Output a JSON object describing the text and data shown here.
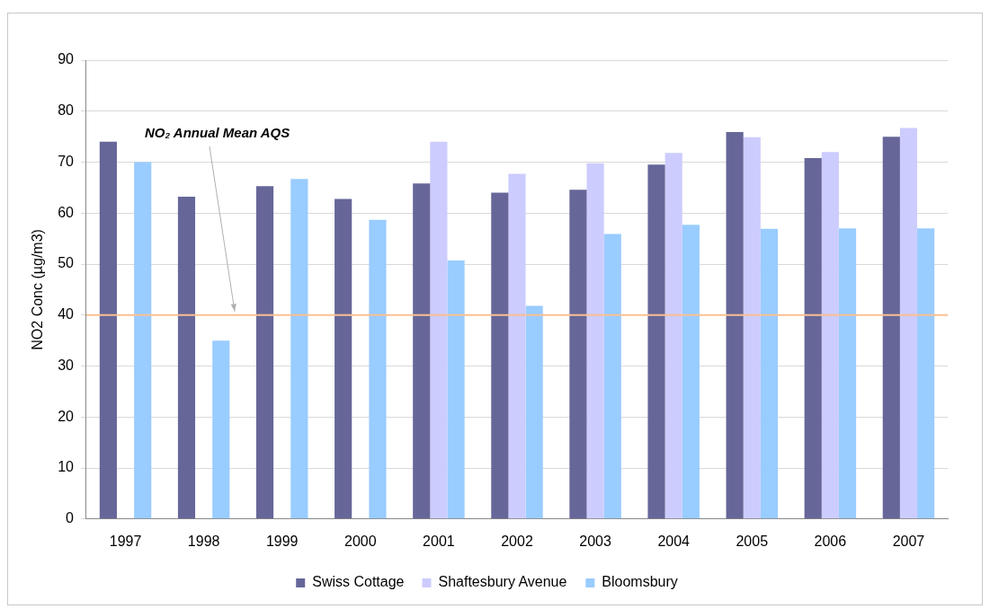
{
  "chart_data": {
    "type": "bar",
    "ylabel": "NO2 Conc (µg/m3)",
    "categories": [
      "1997",
      "1998",
      "1999",
      "2000",
      "2001",
      "2002",
      "2003",
      "2004",
      "2005",
      "2006",
      "2007"
    ],
    "series": [
      {
        "name": "Swiss Cottage",
        "color": "#666699",
        "values": [
          74,
          63.2,
          65.3,
          62.8,
          65.8,
          64,
          64.6,
          69.5,
          75.9,
          70.8,
          75
        ]
      },
      {
        "name": "Shaftesbury Avenue",
        "color": "#ccccff",
        "values": [
          null,
          null,
          null,
          null,
          74,
          67.7,
          69.8,
          71.8,
          74.9,
          72,
          76.7
        ]
      },
      {
        "name": "Bloomsbury",
        "color": "#99ccff",
        "values": [
          70,
          35,
          66.7,
          58.7,
          50.7,
          41.8,
          55.9,
          57.7,
          56.9,
          57,
          57
        ]
      }
    ],
    "ylim": [
      0,
      90
    ],
    "yticks": [
      0,
      10,
      20,
      30,
      40,
      50,
      60,
      70,
      80,
      90
    ],
    "grid": "y",
    "legend": "bottom",
    "ref_lines": [
      {
        "axis": "y",
        "value": 40,
        "label": "NO₂ Annual Mean AQS",
        "color": "#fac090"
      }
    ]
  }
}
